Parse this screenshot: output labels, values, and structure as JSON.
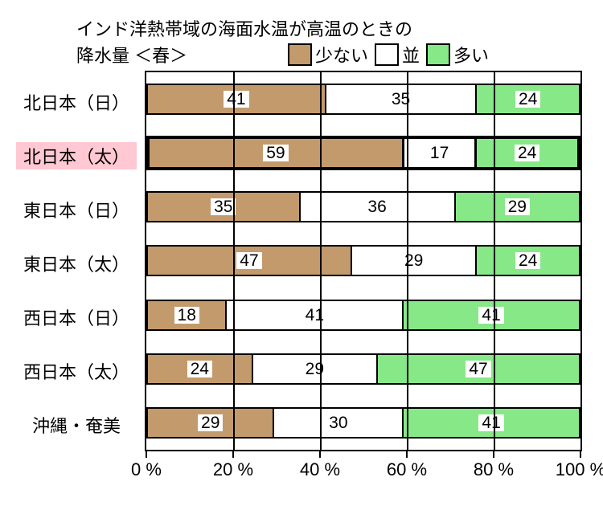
{
  "title_line1": "インド洋熱帯域の海面水温が高温のときの",
  "title_line2": "降水量 ＜春＞",
  "legend": {
    "low": {
      "label": "少ない",
      "color": "#c39a6b"
    },
    "mid": {
      "label": "並",
      "color": "#ffffff"
    },
    "high": {
      "label": "多い",
      "color": "#87e887"
    }
  },
  "rows": [
    {
      "label": "北日本（日）",
      "values": [
        41,
        35,
        24
      ],
      "highlight": false
    },
    {
      "label": "北日本（太）",
      "values": [
        59,
        17,
        24
      ],
      "highlight": true
    },
    {
      "label": "東日本（日）",
      "values": [
        35,
        36,
        29
      ],
      "highlight": false
    },
    {
      "label": "東日本（太）",
      "values": [
        47,
        29,
        24
      ],
      "highlight": false
    },
    {
      "label": "西日本（日）",
      "values": [
        18,
        41,
        41
      ],
      "highlight": false
    },
    {
      "label": "西日本（太）",
      "values": [
        24,
        29,
        47
      ],
      "highlight": false
    },
    {
      "label": "沖縄・奄美",
      "values": [
        29,
        30,
        41
      ],
      "highlight": false
    }
  ],
  "xticks": [
    0,
    20,
    40,
    60,
    80,
    100
  ],
  "xunit": "%",
  "chart_style": {
    "type": "stacked-bar-horizontal",
    "background": "#ffffff",
    "border_color": "#000000",
    "highlight_label_bg": "#ffc8d2",
    "title_fontsize": 22,
    "axis_fontsize": 22,
    "value_fontsize": 21
  }
}
